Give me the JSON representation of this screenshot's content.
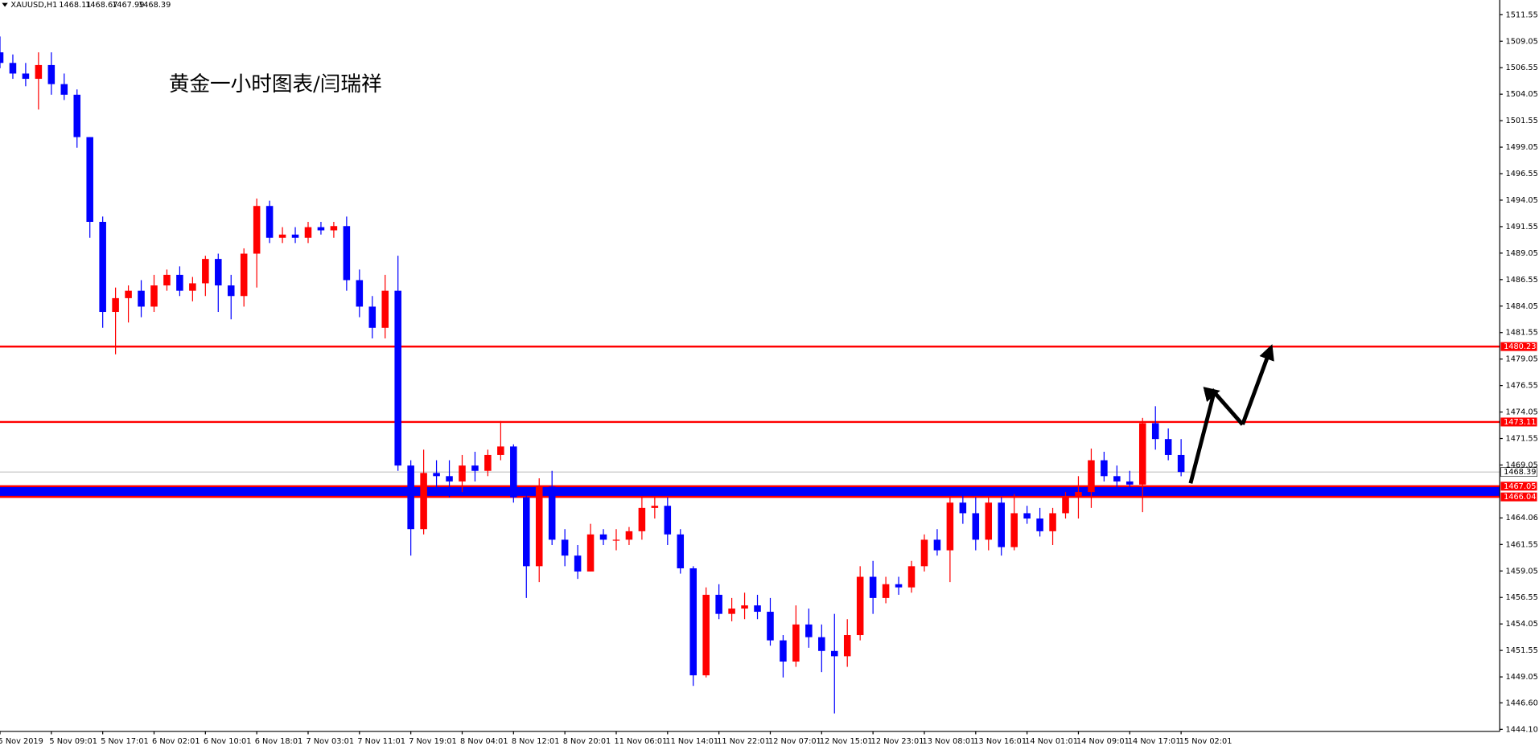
{
  "chart_data": {
    "type": "candlestick",
    "symbol": "XAUUSD,H1",
    "header_ohlc": [
      1468.11,
      1468.67,
      1467.99,
      1468.39
    ],
    "annotation": "黄金一小时图表/闫瑞祥",
    "up_color": "#ff0000",
    "down_color": "#0000ff",
    "categories": [
      "5 Nov 2019",
      null,
      null,
      null,
      "5 Nov 09:01",
      null,
      null,
      null,
      "5 Nov 17:01",
      null,
      null,
      null,
      "6 Nov 02:01",
      null,
      null,
      null,
      "6 Nov 10:01",
      null,
      null,
      null,
      "6 Nov 18:01",
      null,
      null,
      null,
      "7 Nov 03:01",
      null,
      null,
      null,
      "7 Nov 11:01",
      null,
      null,
      null,
      "7 Nov 19:01",
      null,
      null,
      null,
      "8 Nov 04:01",
      null,
      null,
      null,
      "8 Nov 12:01",
      null,
      null,
      null,
      "8 Nov 20:01",
      null,
      null,
      null,
      "11 Nov 06:01",
      null,
      null,
      null,
      "11 Nov 14:01",
      null,
      null,
      null,
      "11 Nov 22:01",
      null,
      null,
      null,
      "12 Nov 07:01",
      null,
      null,
      null,
      "12 Nov 15:01",
      null,
      null,
      null,
      "12 Nov 23:01",
      null,
      null,
      null,
      "13 Nov 08:01",
      null,
      null,
      null,
      "13 Nov 16:01",
      null,
      null,
      null,
      "14 Nov 01:01",
      null,
      null,
      null,
      "14 Nov 09:01",
      null,
      null,
      null,
      "14 Nov 17:01",
      null,
      null,
      null,
      "15 Nov 02:01"
    ],
    "ohlc": [
      [
        1508,
        1509.5,
        1506.5,
        1507
      ],
      [
        1507,
        1507.8,
        1505.5,
        1506
      ],
      [
        1506,
        1507,
        1504.8,
        1505.5
      ],
      [
        1505.5,
        1508,
        1502.6,
        1506.8
      ],
      [
        1506.8,
        1508,
        1504,
        1505
      ],
      [
        1505,
        1506,
        1503.5,
        1504
      ],
      [
        1504,
        1504.5,
        1499,
        1500
      ],
      [
        1500,
        1500,
        1490.5,
        1492
      ],
      [
        1492,
        1492.5,
        1482,
        1483.5
      ],
      [
        1483.5,
        1485.8,
        1479.5,
        1484.8
      ],
      [
        1484.8,
        1486,
        1482.5,
        1485.5
      ],
      [
        1485.5,
        1486.5,
        1483,
        1484
      ],
      [
        1484,
        1487,
        1483.5,
        1486
      ],
      [
        1486,
        1487.5,
        1485.5,
        1487
      ],
      [
        1487,
        1487.8,
        1485,
        1485.5
      ],
      [
        1485.5,
        1486.8,
        1484.5,
        1486.2
      ],
      [
        1486.2,
        1488.8,
        1485,
        1488.5
      ],
      [
        1488.5,
        1489,
        1483.5,
        1486
      ],
      [
        1486,
        1487,
        1482.8,
        1485
      ],
      [
        1485,
        1489.5,
        1484,
        1489
      ],
      [
        1489,
        1494.2,
        1485.8,
        1493.5
      ],
      [
        1493.5,
        1494,
        1490,
        1490.5
      ],
      [
        1490.5,
        1491.5,
        1490,
        1490.8
      ],
      [
        1490.8,
        1491.5,
        1490,
        1490.5
      ],
      [
        1490.5,
        1492,
        1490,
        1491.5
      ],
      [
        1491.5,
        1492,
        1490.8,
        1491.2
      ],
      [
        1491.2,
        1492,
        1490.5,
        1491.6
      ],
      [
        1491.6,
        1492.5,
        1485.5,
        1486.5
      ],
      [
        1486.5,
        1487.5,
        1483,
        1484
      ],
      [
        1484,
        1485,
        1481,
        1482
      ],
      [
        1482,
        1487,
        1481,
        1485.5
      ],
      [
        1485.5,
        1488.8,
        1468.5,
        1469
      ],
      [
        1469,
        1469.5,
        1460.5,
        1463
      ],
      [
        1463,
        1470.5,
        1462.5,
        1468.3
      ],
      [
        1468.3,
        1469.5,
        1466.5,
        1468
      ],
      [
        1468,
        1469.5,
        1466,
        1467.5
      ],
      [
        1467.5,
        1470,
        1466.5,
        1469
      ],
      [
        1469,
        1470.3,
        1467.5,
        1468.5
      ],
      [
        1468.5,
        1470.5,
        1468,
        1470
      ],
      [
        1470,
        1473.2,
        1469.5,
        1470.8
      ],
      [
        1470.8,
        1471,
        1465.5,
        1466
      ],
      [
        1466,
        1466.5,
        1456.5,
        1459.5
      ],
      [
        1459.5,
        1467.8,
        1458,
        1467
      ],
      [
        1467,
        1468.5,
        1461.5,
        1462
      ],
      [
        1462,
        1463,
        1459.5,
        1460.5
      ],
      [
        1460.5,
        1461.5,
        1458.3,
        1459
      ],
      [
        1459,
        1463.5,
        1459,
        1462.5
      ],
      [
        1462.5,
        1463,
        1461.5,
        1462
      ],
      [
        1462,
        1463,
        1461,
        1462
      ],
      [
        1462,
        1463.2,
        1461.5,
        1462.8
      ],
      [
        1462.8,
        1466,
        1462,
        1465
      ],
      [
        1465,
        1466,
        1464,
        1465.2
      ],
      [
        1465.2,
        1466,
        1461.5,
        1462.5
      ],
      [
        1462.5,
        1463,
        1458.8,
        1459.3
      ],
      [
        1459.3,
        1459.5,
        1448.2,
        1449.2
      ],
      [
        1449.2,
        1457.5,
        1449,
        1456.8
      ],
      [
        1456.8,
        1457.8,
        1454.5,
        1455
      ],
      [
        1455,
        1456.5,
        1454.3,
        1455.5
      ],
      [
        1455.5,
        1457,
        1454.5,
        1455.8
      ],
      [
        1455.8,
        1456.8,
        1454.5,
        1455.2
      ],
      [
        1455.2,
        1456.5,
        1452,
        1452.5
      ],
      [
        1452.5,
        1453,
        1449,
        1450.5
      ],
      [
        1450.5,
        1455.8,
        1450,
        1454
      ],
      [
        1454,
        1455.5,
        1451.8,
        1452.8
      ],
      [
        1452.8,
        1454,
        1449.5,
        1451.5
      ],
      [
        1451.5,
        1455,
        1445.6,
        1451
      ],
      [
        1451,
        1454.5,
        1450,
        1453
      ],
      [
        1453,
        1459.5,
        1452.5,
        1458.5
      ],
      [
        1458.5,
        1460,
        1455,
        1456.5
      ],
      [
        1456.5,
        1458.5,
        1456,
        1457.8
      ],
      [
        1457.8,
        1458.5,
        1456.8,
        1457.5
      ],
      [
        1457.5,
        1460,
        1457,
        1459.5
      ],
      [
        1459.5,
        1462.5,
        1459,
        1462
      ],
      [
        1462,
        1463,
        1460.5,
        1461
      ],
      [
        1461,
        1466,
        1458,
        1465.5
      ],
      [
        1465.5,
        1466.5,
        1463.5,
        1464.5
      ],
      [
        1464.5,
        1466,
        1461,
        1462
      ],
      [
        1462,
        1466,
        1461,
        1465.5
      ],
      [
        1465.5,
        1466,
        1460.5,
        1461.3
      ],
      [
        1461.3,
        1466.3,
        1461,
        1464.5
      ],
      [
        1464.5,
        1465.2,
        1463.5,
        1464
      ],
      [
        1464,
        1465,
        1462.3,
        1462.8
      ],
      [
        1462.8,
        1465,
        1461.5,
        1464.5
      ],
      [
        1464.5,
        1466.5,
        1464,
        1466
      ],
      [
        1466,
        1468,
        1464,
        1466.5
      ],
      [
        1466.5,
        1470.6,
        1465,
        1469.5
      ],
      [
        1469.5,
        1470.3,
        1467.5,
        1468
      ],
      [
        1468,
        1469,
        1466.5,
        1467.5
      ],
      [
        1467.5,
        1468.5,
        1466.5,
        1467.2
      ],
      [
        1467.2,
        1473.5,
        1464.6,
        1473
      ],
      [
        1473,
        1474.6,
        1470.5,
        1471.5
      ],
      [
        1471.5,
        1472.5,
        1469.5,
        1470
      ],
      [
        1470,
        1471.5,
        1467.99,
        1468.39
      ]
    ],
    "ylim": [
      1443.91,
      1512.94
    ],
    "yticks": [
      1511.55,
      1509.05,
      1506.55,
      1504.05,
      1501.55,
      1499.05,
      1496.55,
      1494.05,
      1491.55,
      1489.05,
      1486.55,
      1484.05,
      1481.55,
      1479.05,
      1476.55,
      1474.05,
      1471.55,
      1469.05,
      1464.06,
      1461.55,
      1459.05,
      1456.55,
      1454.05,
      1451.55,
      1449.05,
      {
        "value": 1446.6,
        "label": "1446.60"
      },
      {
        "value": 1444.1,
        "label": "1444.10"
      }
    ],
    "resistance_levels": [
      {
        "value": 1480.23,
        "color": "#ff0000"
      },
      {
        "value": 1473.11,
        "color": "#ff0000"
      }
    ],
    "support_zone": {
      "low": 1466.04,
      "high": 1467.05,
      "fill": "#0000ff",
      "edge": "#ff0000"
    },
    "last_price": 1468.39
  }
}
